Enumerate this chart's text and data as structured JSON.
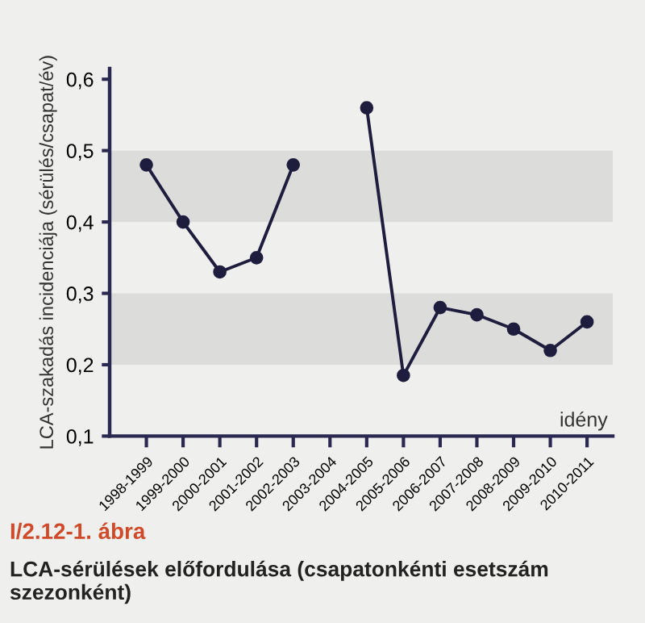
{
  "chart_data": {
    "type": "line",
    "xlabel": "idény",
    "ylabel": "LCA-szakadás incidenciája (sérülés/csapat/év)",
    "annotations": [
      "I/2.12-1. ábra",
      "LCA-sérülések előfordulása (csapatonkénti esetszám szezonként)"
    ],
    "categories": [
      "1998-1999",
      "1999-2000",
      "2000-2001",
      "2001-2002",
      "2002-2003",
      "2003-2004",
      "2004-2005",
      "2005-2006",
      "2006-2007",
      "2007-2008",
      "2008-2009",
      "2009-2010",
      "2010-2011"
    ],
    "series": [
      {
        "color": "#1f1d3d",
        "values": [
          0.48,
          0.4,
          0.33,
          0.35,
          0.48,
          null,
          0.56,
          0.185,
          0.28,
          0.27,
          0.25,
          0.22,
          0.26
        ]
      }
    ],
    "ylim": [
      0.1,
      0.615
    ],
    "yticks": [
      {
        "value": 0.1,
        "label": "0,1"
      },
      {
        "value": 0.2,
        "label": "0,2"
      },
      {
        "value": 0.3,
        "label": "0,3"
      },
      {
        "value": 0.4,
        "label": "0,4"
      },
      {
        "value": 0.5,
        "label": "0,5"
      },
      {
        "value": 0.6,
        "label": "0,6"
      }
    ],
    "bands": [
      {
        "axis": "y",
        "from": 0.4,
        "to": 0.5,
        "color": "#dcdcda"
      },
      {
        "axis": "y",
        "from": 0.2,
        "to": 0.3,
        "color": "#dcdcda"
      }
    ],
    "grid": false,
    "legend": false,
    "marker": "circle",
    "line_style": "solid"
  }
}
